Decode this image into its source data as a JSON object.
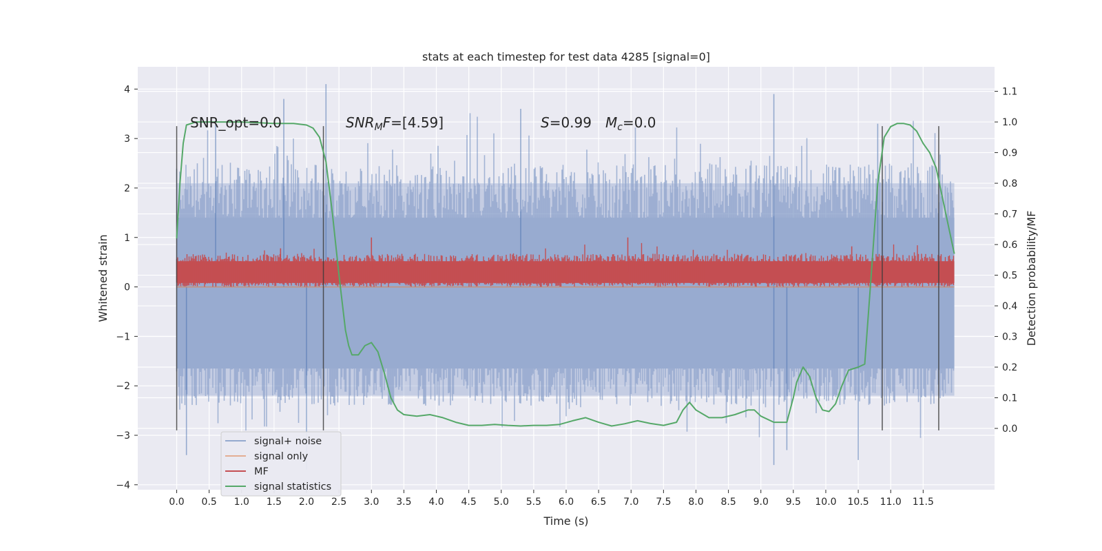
{
  "chart_data": {
    "type": "line",
    "title": "stats at each timestep for test data 4285 [signal=0]",
    "xlabel": "Time (s)",
    "ylabel": "Whitened strain",
    "y2label": "Detection probability/MF",
    "xlim": [
      -0.6,
      12.6
    ],
    "ylim": [
      -4.1,
      4.45
    ],
    "y2lim": [
      -0.2,
      1.18
    ],
    "x_ticks": [
      0.0,
      0.5,
      1.0,
      1.5,
      2.0,
      2.5,
      3.0,
      3.5,
      4.0,
      4.5,
      5.0,
      5.5,
      6.0,
      6.5,
      7.0,
      7.5,
      8.0,
      8.5,
      9.0,
      9.5,
      10.0,
      10.5,
      11.0,
      11.5
    ],
    "x_tick_labels": [
      "0.0",
      "0.5",
      "1.0",
      "1.5",
      "2.0",
      "2.5",
      "3.0",
      "3.5",
      "4.0",
      "4.5",
      "5.0",
      "5.5",
      "6.0",
      "6.5",
      "7.0",
      "7.5",
      "8.0",
      "8.5",
      "9.0",
      "9.5",
      "10.0",
      "10.5",
      "11.0",
      "11.5"
    ],
    "y_ticks": [
      4,
      3,
      2,
      1,
      0,
      -1,
      -2,
      -3,
      -4
    ],
    "y_tick_labels": [
      "4",
      "3",
      "2",
      "1",
      "0",
      "−1",
      "−2",
      "−3",
      "−4"
    ],
    "y2_ticks": [
      1.1,
      1.0,
      0.9,
      0.8,
      0.7,
      0.6,
      0.5,
      0.4,
      0.3,
      0.2,
      0.1,
      0.0
    ],
    "y2_tick_labels": [
      "1.1",
      "1.0",
      "0.9",
      "0.8",
      "0.7",
      "0.6",
      "0.5",
      "0.4",
      "0.3",
      "0.2",
      "0.1",
      "0.0"
    ],
    "grid": true,
    "legend_position": "lower-left",
    "annotations": {
      "snr_opt": "SNR_opt=0.0",
      "snr_mf_name": "SNR",
      "snr_mf_sub": "M",
      "snr_mf_rest": "F=[4.59]",
      "s_name": "S",
      "s_rest": "=0.99",
      "mc_name": "M",
      "mc_sub": "c",
      "mc_rest": "=0.0"
    },
    "vertical_markers": [
      {
        "x": 0.0,
        "y_range": [
          -2.9,
          3.25
        ]
      },
      {
        "x": 2.26,
        "y_range": [
          -2.9,
          3.25
        ]
      },
      {
        "x": 10.87,
        "y_range": [
          -2.9,
          3.25
        ]
      },
      {
        "x": 11.74,
        "y_range": [
          -2.9,
          3.25
        ]
      }
    ],
    "series": [
      {
        "name": "signal+ noise",
        "color": "#4c72b0",
        "axis": "left",
        "t_range": [
          0.0,
          11.98
        ],
        "envelope_pos": 2.5,
        "envelope_neg": -2.4,
        "max": 4.1,
        "min": -3.6
      },
      {
        "name": "signal only",
        "color": "#dd8452",
        "axis": "left",
        "t_range": [
          0.0,
          11.98
        ],
        "values_constant": 0.0
      },
      {
        "name": "MF",
        "color": "#c44e52",
        "axis": "left",
        "t_range": [
          0.0,
          11.98
        ],
        "band": [
          0.0,
          0.7
        ],
        "max": 1.0
      },
      {
        "name": "signal statistics",
        "color": "#55a868",
        "axis": "right",
        "x": [
          0.0,
          0.05,
          0.1,
          0.15,
          0.3,
          0.6,
          1.0,
          1.5,
          1.8,
          2.0,
          2.1,
          2.2,
          2.3,
          2.4,
          2.5,
          2.6,
          2.65,
          2.7,
          2.8,
          2.9,
          3.0,
          3.1,
          3.2,
          3.3,
          3.4,
          3.5,
          3.7,
          3.9,
          4.1,
          4.3,
          4.5,
          4.7,
          4.9,
          5.1,
          5.3,
          5.5,
          5.7,
          5.9,
          6.1,
          6.3,
          6.5,
          6.7,
          6.9,
          7.1,
          7.3,
          7.5,
          7.7,
          7.8,
          7.9,
          8.0,
          8.2,
          8.4,
          8.6,
          8.8,
          8.9,
          9.0,
          9.2,
          9.4,
          9.5,
          9.55,
          9.65,
          9.75,
          9.85,
          9.95,
          10.05,
          10.15,
          10.25,
          10.35,
          10.5,
          10.6,
          10.7,
          10.8,
          10.9,
          11.0,
          11.1,
          11.2,
          11.3,
          11.4,
          11.5,
          11.6,
          11.7,
          11.8,
          11.9,
          11.98
        ],
        "values": [
          0.62,
          0.8,
          0.93,
          0.99,
          1.0,
          1.0,
          1.0,
          0.995,
          0.995,
          0.99,
          0.98,
          0.95,
          0.87,
          0.7,
          0.5,
          0.32,
          0.27,
          0.24,
          0.24,
          0.27,
          0.28,
          0.25,
          0.18,
          0.1,
          0.06,
          0.045,
          0.04,
          0.045,
          0.035,
          0.02,
          0.01,
          0.01,
          0.013,
          0.01,
          0.008,
          0.01,
          0.01,
          0.013,
          0.025,
          0.035,
          0.02,
          0.008,
          0.015,
          0.025,
          0.016,
          0.01,
          0.02,
          0.06,
          0.085,
          0.06,
          0.035,
          0.035,
          0.045,
          0.06,
          0.06,
          0.04,
          0.02,
          0.02,
          0.1,
          0.15,
          0.2,
          0.17,
          0.1,
          0.06,
          0.055,
          0.08,
          0.14,
          0.19,
          0.2,
          0.21,
          0.5,
          0.8,
          0.95,
          0.985,
          0.995,
          0.995,
          0.99,
          0.97,
          0.93,
          0.9,
          0.85,
          0.75,
          0.65,
          0.57
        ]
      }
    ]
  }
}
